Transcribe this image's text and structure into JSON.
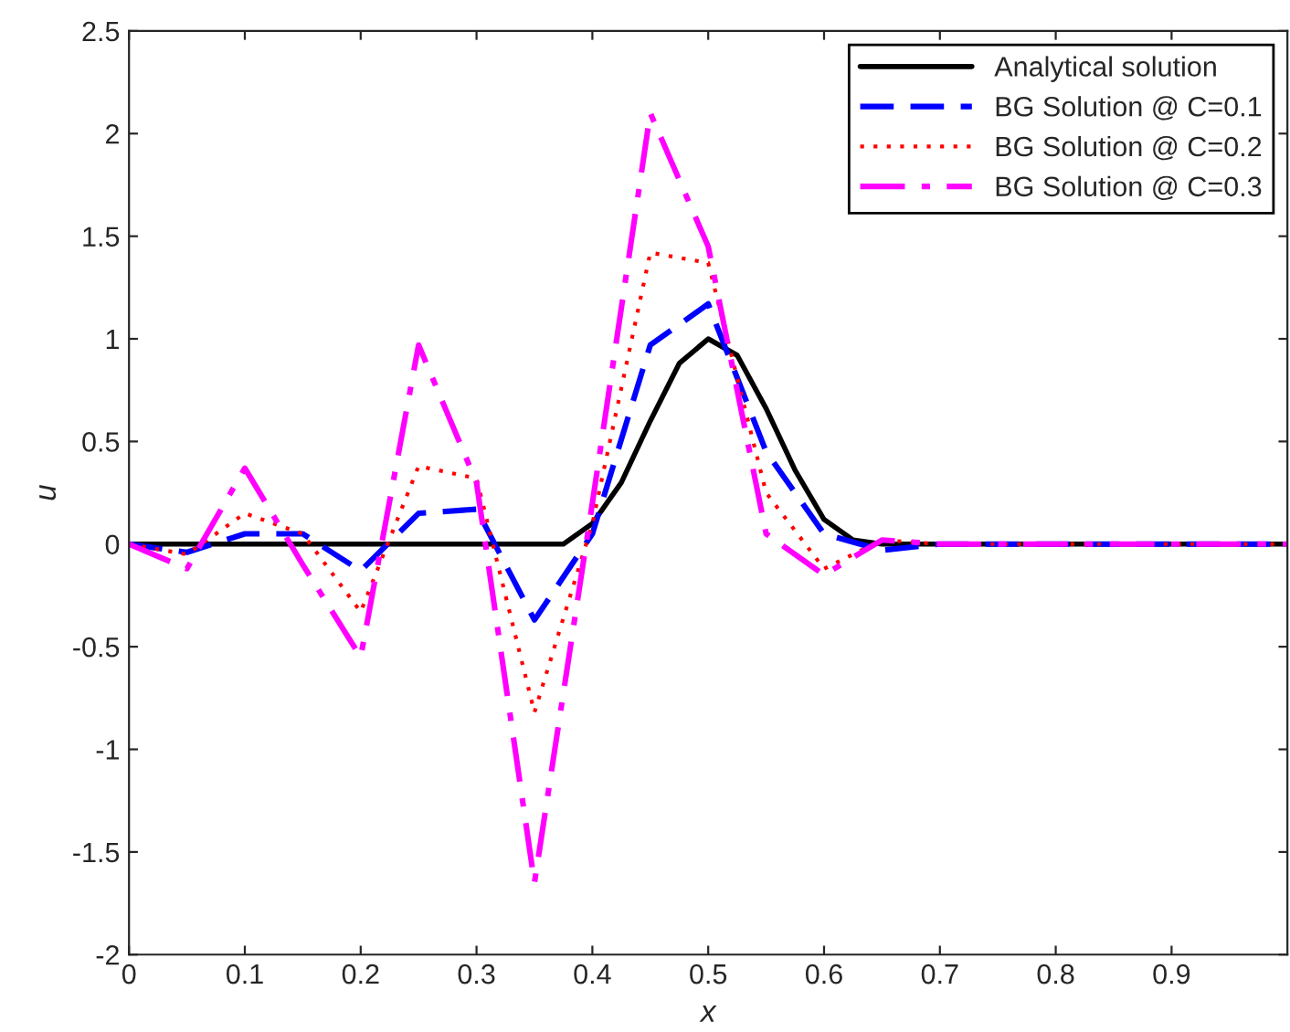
{
  "chart_data": {
    "type": "line",
    "xlabel": "x",
    "ylabel": "u",
    "xlim": [
      0,
      1
    ],
    "ylim": [
      -2,
      2.5
    ],
    "xticks": [
      0,
      0.1,
      0.2,
      0.3,
      0.4,
      0.5,
      0.6,
      0.7,
      0.8,
      0.9
    ],
    "yticks": [
      -2,
      -1.5,
      -1,
      -0.5,
      0,
      0.5,
      1,
      1.5,
      2,
      2.5
    ],
    "grid": false,
    "legend": "top right",
    "series": [
      {
        "name": "Analytical solution",
        "color": "#000000",
        "line_style": "solid",
        "x": [
          0,
          0.375,
          0.4,
          0.425,
          0.45,
          0.475,
          0.5,
          0.525,
          0.55,
          0.575,
          0.6,
          0.625,
          0.65,
          1
        ],
        "values": [
          0,
          0,
          0.1,
          0.3,
          0.6,
          0.88,
          1.0,
          0.92,
          0.66,
          0.36,
          0.12,
          0.02,
          0,
          0
        ]
      },
      {
        "name": "BG Solution @ C=0.1",
        "color": "#0000ff",
        "line_style": "dashed",
        "x": [
          0,
          0.05,
          0.1,
          0.15,
          0.2,
          0.25,
          0.3,
          0.35,
          0.4,
          0.45,
          0.5,
          0.55,
          0.6,
          0.65,
          0.7,
          1
        ],
        "values": [
          0,
          -0.04,
          0.05,
          0.05,
          -0.13,
          0.15,
          0.17,
          -0.37,
          0.05,
          0.97,
          1.17,
          0.45,
          0.05,
          -0.03,
          0,
          0
        ]
      },
      {
        "name": "BG Solution @ C=0.2",
        "color": "#ff0000",
        "line_style": "dotted",
        "x": [
          0,
          0.05,
          0.1,
          0.15,
          0.2,
          0.25,
          0.3,
          0.35,
          0.4,
          0.45,
          0.5,
          0.55,
          0.6,
          0.65,
          0.7,
          1
        ],
        "values": [
          0,
          -0.05,
          0.15,
          0.05,
          -0.33,
          0.38,
          0.32,
          -0.82,
          0.1,
          1.42,
          1.37,
          0.25,
          -0.12,
          0.02,
          0,
          0
        ]
      },
      {
        "name": "BG Solution @ C=0.3",
        "color": "#ff00ff",
        "line_style": "dashdot",
        "x": [
          0,
          0.05,
          0.1,
          0.15,
          0.2,
          0.25,
          0.3,
          0.35,
          0.4,
          0.45,
          0.5,
          0.55,
          0.6,
          0.65,
          0.7,
          1
        ],
        "values": [
          0,
          -0.12,
          0.37,
          -0.1,
          -0.55,
          0.97,
          0.3,
          -1.65,
          0.2,
          2.1,
          1.45,
          0.05,
          -0.15,
          0.02,
          0,
          0
        ]
      }
    ]
  }
}
